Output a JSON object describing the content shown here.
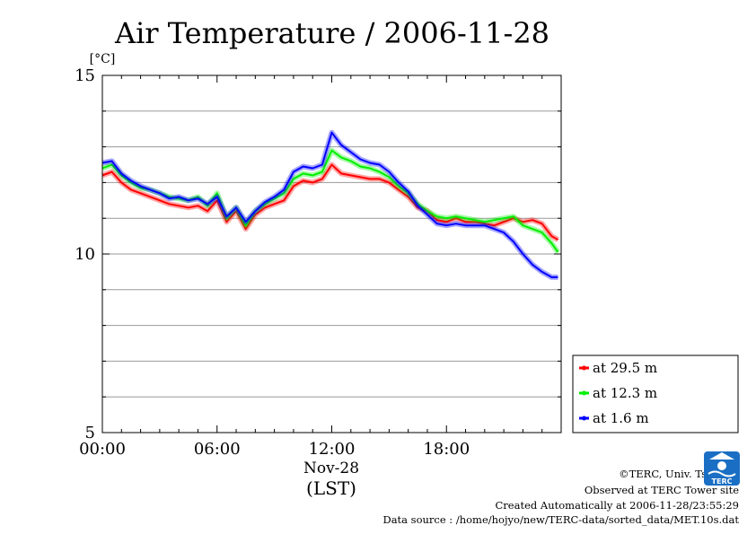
{
  "chart_data": {
    "type": "line",
    "title": "Air Temperature / 2006-11-28",
    "ylabel": "[°C]",
    "xlabel": "(LST)",
    "x_date_label": "Nov-28",
    "ylim": [
      5,
      15
    ],
    "y_ticks": [
      5,
      10,
      15
    ],
    "xlim": [
      "00:00",
      "23:50"
    ],
    "x_ticks": [
      "00:00",
      "06:00",
      "12:00",
      "18:00"
    ],
    "grid": true,
    "legend_position": "right, below plot top",
    "x": [
      "00:00",
      "00:30",
      "01:00",
      "01:30",
      "02:00",
      "02:30",
      "03:00",
      "03:30",
      "04:00",
      "04:30",
      "05:00",
      "05:30",
      "06:00",
      "06:30",
      "07:00",
      "07:30",
      "08:00",
      "08:30",
      "09:00",
      "09:30",
      "10:00",
      "10:30",
      "11:00",
      "11:30",
      "12:00",
      "12:30",
      "13:00",
      "13:30",
      "14:00",
      "14:30",
      "15:00",
      "15:30",
      "16:00",
      "16:30",
      "17:00",
      "17:30",
      "18:00",
      "18:30",
      "19:00",
      "19:30",
      "20:00",
      "20:30",
      "21:00",
      "21:30",
      "22:00",
      "22:30",
      "23:00",
      "23:30",
      "23:50"
    ],
    "series": [
      {
        "name": "at 29.5 m",
        "color": "#ff0000",
        "values": [
          12.2,
          12.3,
          12.0,
          11.8,
          11.7,
          11.6,
          11.5,
          11.4,
          11.35,
          11.3,
          11.35,
          11.2,
          11.5,
          10.9,
          11.2,
          10.7,
          11.1,
          11.3,
          11.4,
          11.5,
          11.9,
          12.05,
          12.0,
          12.1,
          12.5,
          12.25,
          12.2,
          12.15,
          12.1,
          12.1,
          12.0,
          11.8,
          11.6,
          11.3,
          11.2,
          10.95,
          10.9,
          11.0,
          10.9,
          10.9,
          10.85,
          10.8,
          10.9,
          11.0,
          10.9,
          10.95,
          10.85,
          10.5,
          10.4
        ]
      },
      {
        "name": "at 12.3 m",
        "color": "#00ee00",
        "values": [
          12.4,
          12.5,
          12.2,
          12.0,
          11.85,
          11.8,
          11.7,
          11.6,
          11.55,
          11.5,
          11.6,
          11.35,
          11.7,
          11.0,
          11.3,
          10.8,
          11.2,
          11.4,
          11.55,
          11.7,
          12.1,
          12.25,
          12.2,
          12.3,
          12.9,
          12.7,
          12.6,
          12.45,
          12.4,
          12.3,
          12.15,
          11.9,
          11.7,
          11.4,
          11.2,
          11.05,
          11.0,
          11.05,
          11.0,
          10.95,
          10.9,
          10.95,
          11.0,
          11.05,
          10.8,
          10.7,
          10.6,
          10.3,
          10.05
        ]
      },
      {
        "name": "at 1.6 m",
        "color": "#0000ff",
        "values": [
          12.55,
          12.6,
          12.25,
          12.05,
          11.9,
          11.8,
          11.7,
          11.55,
          11.6,
          11.5,
          11.55,
          11.4,
          11.6,
          11.05,
          11.3,
          10.9,
          11.2,
          11.45,
          11.6,
          11.8,
          12.3,
          12.45,
          12.4,
          12.5,
          13.4,
          13.05,
          12.85,
          12.65,
          12.55,
          12.5,
          12.3,
          12.0,
          11.75,
          11.35,
          11.1,
          10.85,
          10.8,
          10.85,
          10.8,
          10.8,
          10.8,
          10.7,
          10.6,
          10.35,
          10.0,
          9.7,
          9.5,
          9.35,
          9.35
        ]
      }
    ]
  },
  "credits": {
    "line1": "©TERC, Univ. Tsukuba",
    "line2": "Observed at TERC Tower site",
    "line3": "Created Automatically at 2006-11-28/23:55:29",
    "line4": "Data source : /home/hojyo/new/TERC-data/sorted_data/MET.10s.dat"
  },
  "logo": {
    "icon": "terc-logo-icon",
    "text": "TERC",
    "color": "#1a6fc4"
  }
}
